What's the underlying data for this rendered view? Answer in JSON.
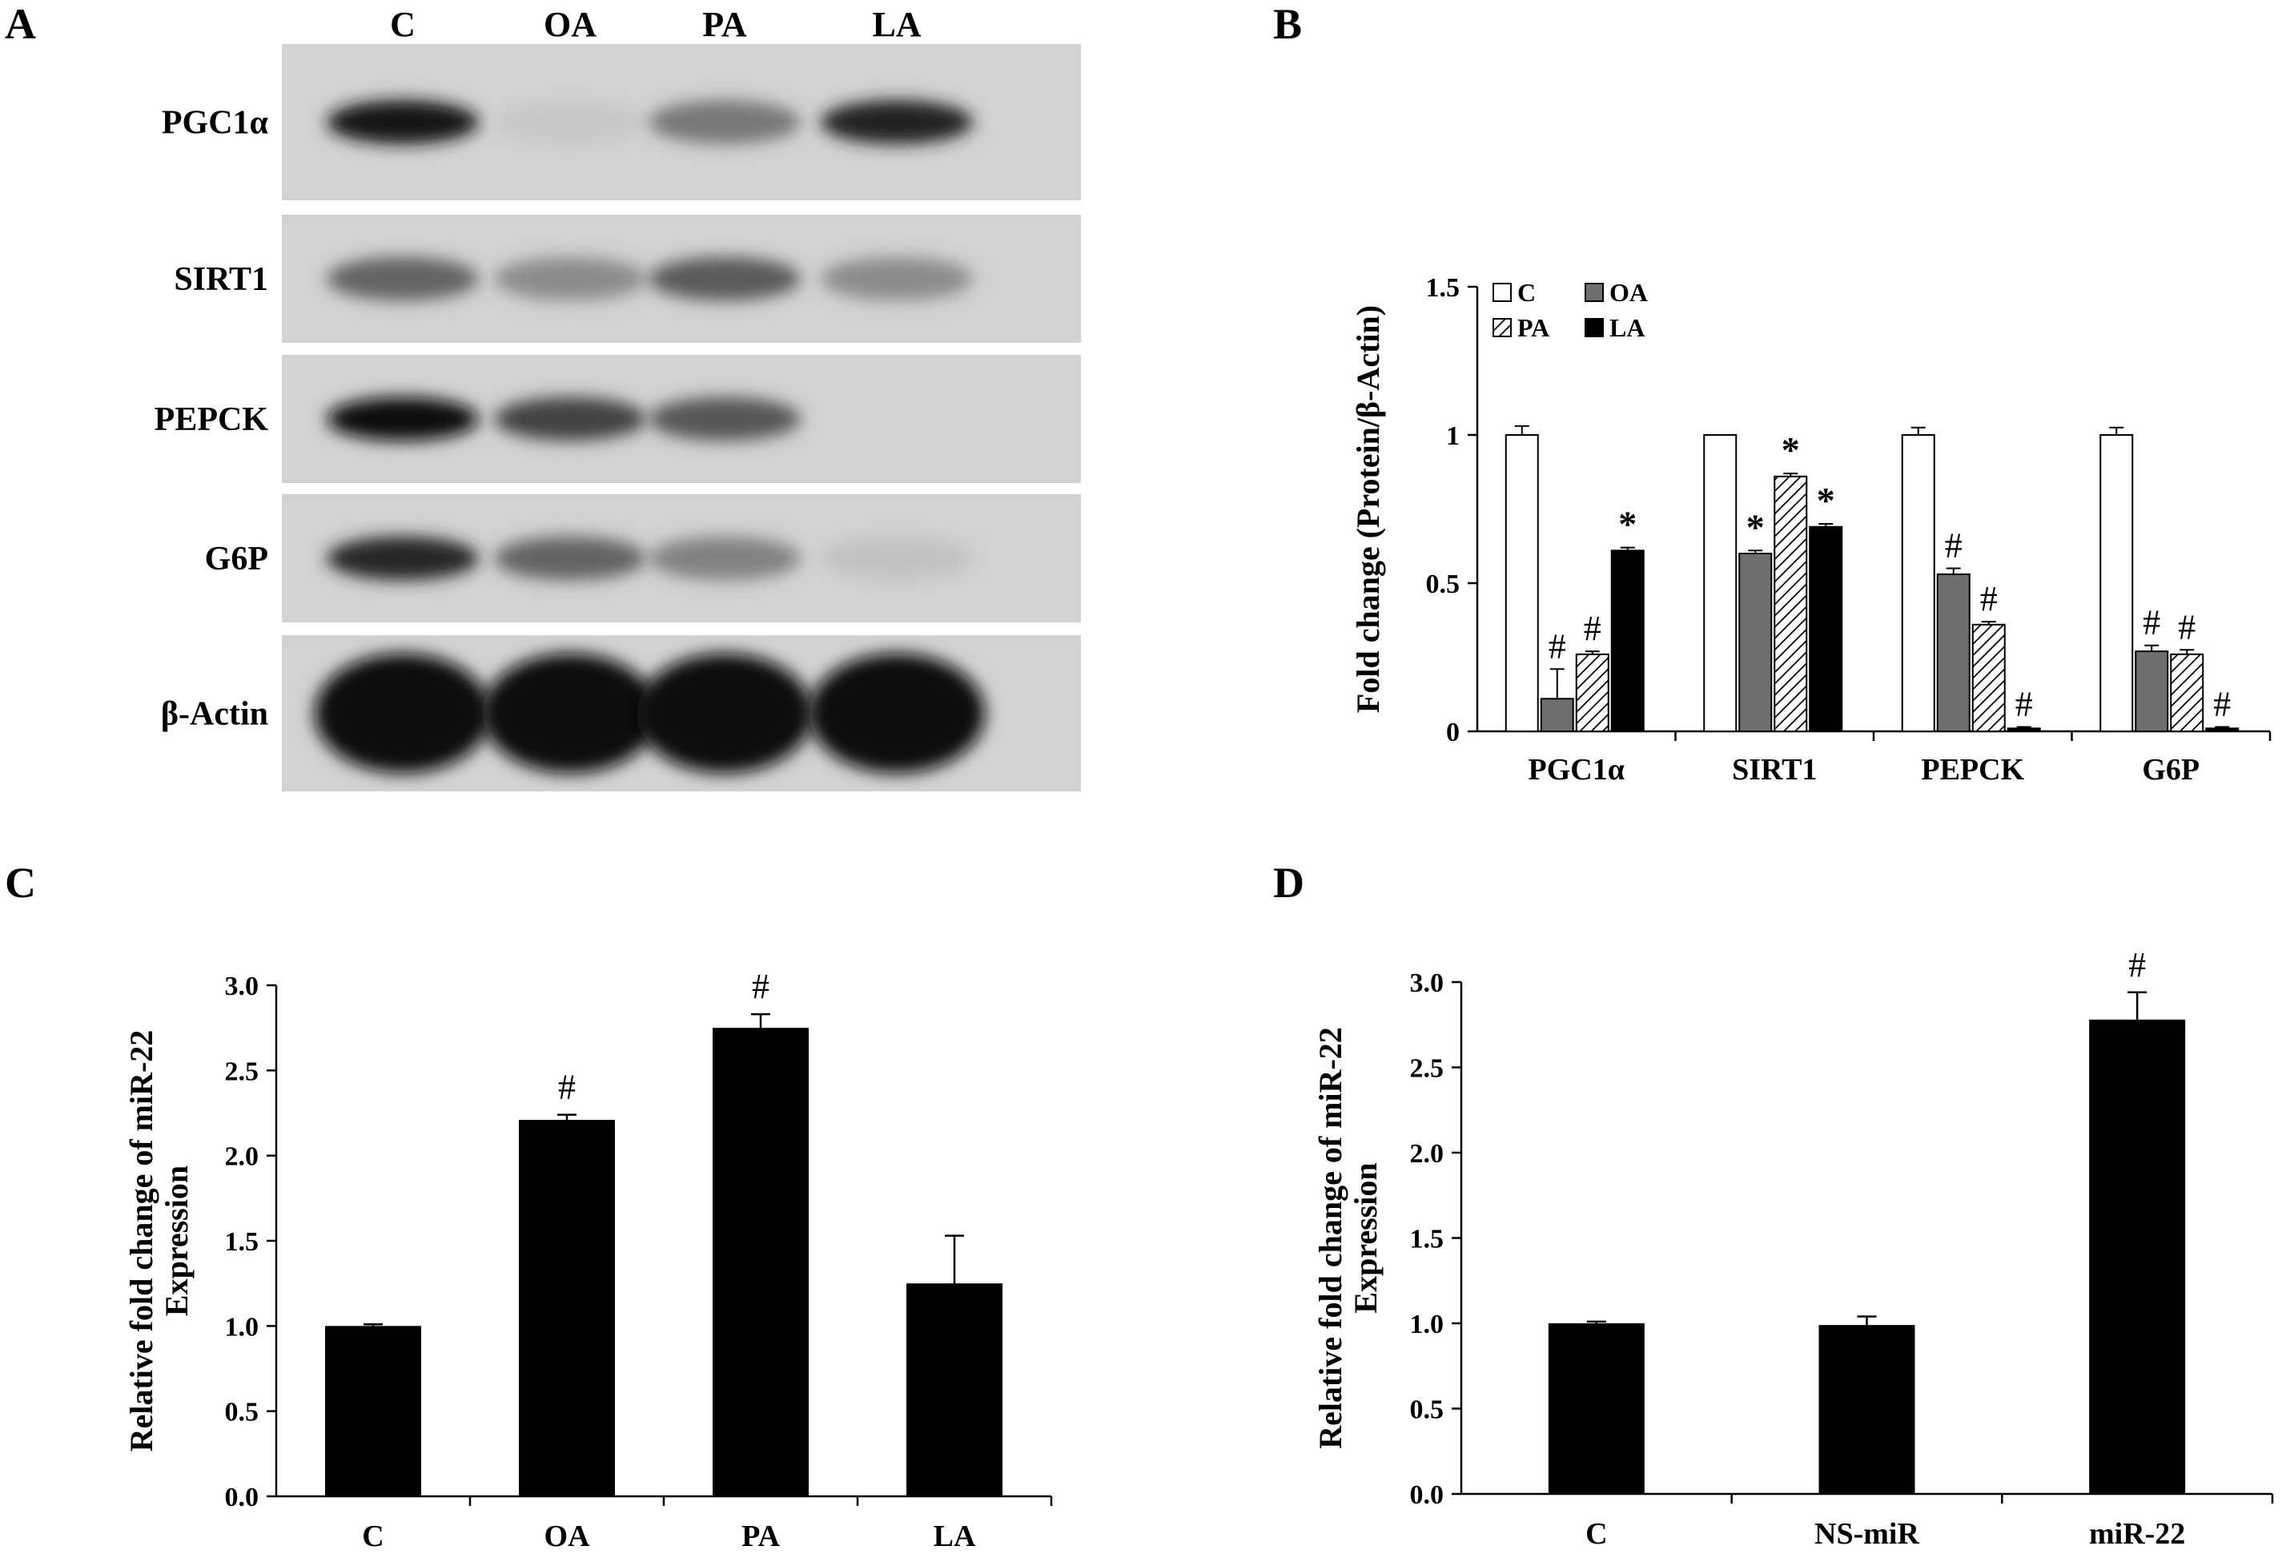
{
  "panel_A": {
    "letter": "A",
    "lanes": [
      "C",
      "OA",
      "PA",
      "LA"
    ],
    "rows": [
      {
        "label": "PGC1α",
        "intensity": [
          0.95,
          0.05,
          0.45,
          0.88
        ]
      },
      {
        "label": "SIRT1",
        "intensity": [
          0.55,
          0.35,
          0.6,
          0.35
        ]
      },
      {
        "label": "PEPCK",
        "intensity": [
          0.97,
          0.72,
          0.62,
          0.0
        ]
      },
      {
        "label": "G6P",
        "intensity": [
          0.85,
          0.55,
          0.4,
          0.08
        ]
      },
      {
        "label": "β-Actin",
        "intensity": [
          1.0,
          1.0,
          1.0,
          1.0
        ]
      }
    ]
  },
  "colors": {
    "bar": "#000000",
    "oa_gray": "#6e6e6e",
    "blot_bg": "#d2d2d2"
  },
  "chart_data": [
    {
      "panel": "B",
      "type": "bar",
      "ylabel": "Fold change (Protein/β-Actin)",
      "ylim": [
        0,
        1.5
      ],
      "yticks": [
        "0",
        "0.5",
        "1",
        "1.5"
      ],
      "yticks_values": [
        0,
        0.5,
        1,
        1.5
      ],
      "categories": [
        "PGC1α",
        "SIRT1",
        "PEPCK",
        "G6P"
      ],
      "legend_position": "top-left",
      "series": [
        {
          "name": "C",
          "style": "white",
          "values": [
            1.0,
            1.0,
            1.0,
            1.0
          ],
          "errors": [
            0.03,
            0.0,
            0.025,
            0.025
          ],
          "marks": [
            "",
            "",
            "",
            ""
          ]
        },
        {
          "name": "OA",
          "style": "gray",
          "values": [
            0.11,
            0.6,
            0.53,
            0.27
          ],
          "errors": [
            0.1,
            0.01,
            0.02,
            0.02
          ],
          "marks": [
            "#",
            "*",
            "#",
            "#"
          ]
        },
        {
          "name": "PA",
          "style": "hatch",
          "values": [
            0.26,
            0.86,
            0.36,
            0.26
          ],
          "errors": [
            0.01,
            0.01,
            0.01,
            0.015
          ],
          "marks": [
            "#",
            "*",
            "#",
            "#"
          ]
        },
        {
          "name": "LA",
          "style": "black",
          "values": [
            0.61,
            0.69,
            0.01,
            0.01
          ],
          "errors": [
            0.01,
            0.01,
            0.005,
            0.005
          ],
          "marks": [
            "*",
            "*",
            "#",
            "#"
          ]
        }
      ]
    },
    {
      "panel": "C",
      "type": "bar",
      "ylabel": "Relative fold change of miR-22 Expression",
      "ylim": [
        0,
        3.0
      ],
      "yticks": [
        "0.0",
        "0.5",
        "1.0",
        "1.5",
        "2.0",
        "2.5",
        "3.0"
      ],
      "yticks_values": [
        0,
        0.5,
        1.0,
        1.5,
        2.0,
        2.5,
        3.0
      ],
      "categories": [
        "C",
        "OA",
        "PA",
        "LA"
      ],
      "values": [
        1.0,
        2.21,
        2.75,
        1.25
      ],
      "errors": [
        0.01,
        0.03,
        0.08,
        0.28
      ],
      "marks": [
        "",
        "#",
        "#",
        ""
      ]
    },
    {
      "panel": "D",
      "type": "bar",
      "ylabel": "Relative fold change of miR-22 Expression",
      "ylim": [
        0,
        3.0
      ],
      "yticks": [
        "0.0",
        "0.5",
        "1.0",
        "1.5",
        "2.0",
        "2.5",
        "3.0"
      ],
      "yticks_values": [
        0,
        0.5,
        1.0,
        1.5,
        2.0,
        2.5,
        3.0
      ],
      "categories": [
        "C",
        "NS-miR",
        "miR-22"
      ],
      "values": [
        1.0,
        0.99,
        2.78
      ],
      "errors": [
        0.01,
        0.05,
        0.16
      ],
      "marks": [
        "",
        "",
        "#"
      ]
    }
  ]
}
